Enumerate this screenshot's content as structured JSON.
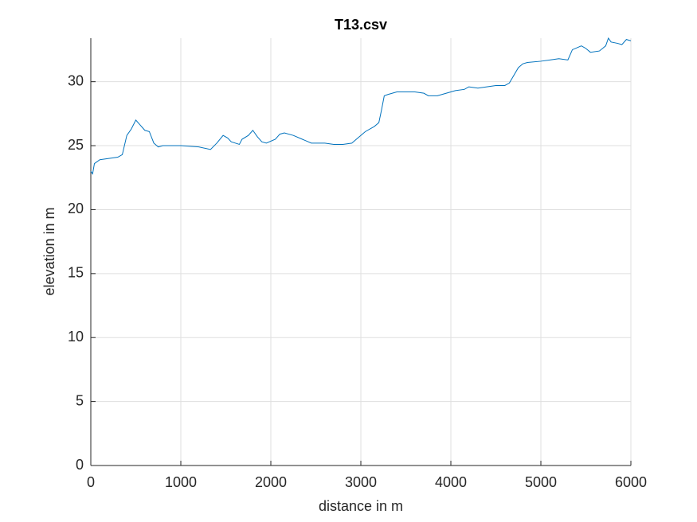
{
  "chart_data": {
    "type": "line",
    "title": "T13.csv",
    "xlabel": "distance in m",
    "ylabel": "elevation in m",
    "x": [
      0,
      20,
      40,
      100,
      200,
      300,
      350,
      400,
      450,
      500,
      550,
      600,
      650,
      700,
      750,
      800,
      1000,
      1200,
      1330,
      1400,
      1470,
      1520,
      1560,
      1650,
      1680,
      1750,
      1800,
      1850,
      1900,
      1950,
      2050,
      2100,
      2150,
      2250,
      2350,
      2450,
      2600,
      2700,
      2800,
      2900,
      2950,
      3050,
      3150,
      3200,
      3230,
      3260,
      3300,
      3400,
      3600,
      3700,
      3750,
      3850,
      3950,
      4050,
      4150,
      4200,
      4300,
      4400,
      4500,
      4600,
      4650,
      4700,
      4750,
      4800,
      4850,
      5000,
      5100,
      5200,
      5300,
      5350,
      5450,
      5500,
      5550,
      5650,
      5720,
      5750,
      5780,
      5850,
      5900,
      5950,
      6000
    ],
    "series": [
      {
        "color": "#0072bd",
        "values": [
          23.0,
          22.8,
          23.6,
          23.9,
          24.0,
          24.1,
          24.3,
          25.8,
          26.3,
          27.0,
          26.6,
          26.2,
          26.1,
          25.2,
          24.9,
          25.0,
          25.0,
          24.9,
          24.7,
          25.2,
          25.8,
          25.6,
          25.3,
          25.1,
          25.5,
          25.8,
          26.2,
          25.7,
          25.3,
          25.2,
          25.5,
          25.9,
          26.0,
          25.8,
          25.5,
          25.2,
          25.2,
          25.1,
          25.1,
          25.2,
          25.5,
          26.1,
          26.5,
          26.8,
          27.8,
          28.9,
          29.0,
          29.2,
          29.2,
          29.1,
          28.9,
          28.9,
          29.1,
          29.3,
          29.4,
          29.6,
          29.5,
          29.6,
          29.7,
          29.7,
          29.9,
          30.5,
          31.1,
          31.4,
          31.5,
          31.6,
          31.7,
          31.8,
          31.7,
          32.5,
          32.8,
          32.6,
          32.3,
          32.4,
          32.8,
          33.4,
          33.1,
          33.0,
          32.9,
          33.3,
          33.2
        ]
      }
    ],
    "xlim": [
      0,
      6000
    ],
    "ylim": [
      0,
      33.4
    ],
    "xticks": [
      0,
      1000,
      2000,
      3000,
      4000,
      5000,
      6000
    ],
    "yticks": [
      0,
      5,
      10,
      15,
      20,
      25,
      30
    ],
    "grid": true
  }
}
